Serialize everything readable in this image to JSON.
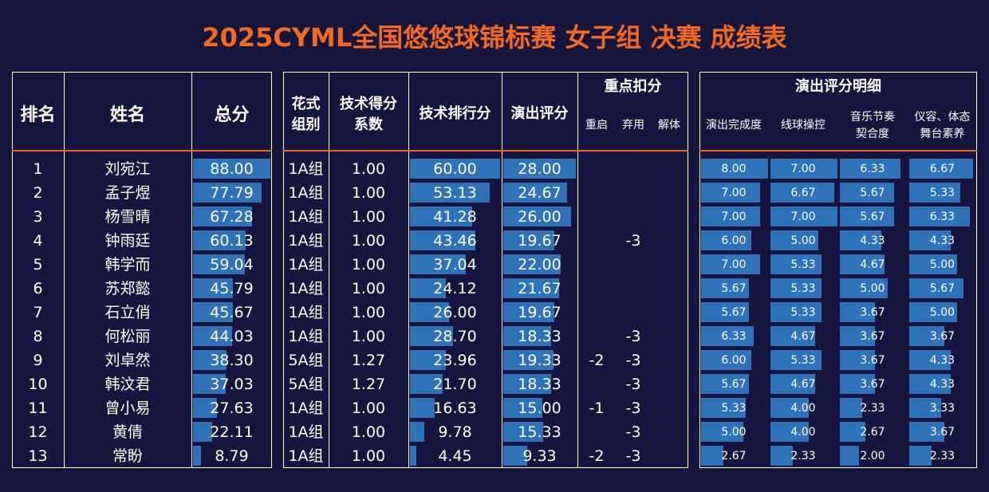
{
  "title": "2025CYML全国悠悠球锦标赛 女子组 决赛 成绩表",
  "headers": {
    "rank": "排名",
    "name": "姓名",
    "total": "总分",
    "group_l1": "花式",
    "group_l2": "组别",
    "coef_l1": "技术得分",
    "coef_l2": "系数",
    "tech": "技术排行分",
    "perf": "演出评分",
    "deduct": "重点扣分",
    "restart": "重启",
    "abandon": "弃用",
    "untie": "解体",
    "detail": "演出评分明细",
    "completion": "演出完成度",
    "control": "线球操控",
    "music_l1": "音乐节奏",
    "music_l2": "契合度",
    "posture_l1": "仪容、体态",
    "posture_l2": "舞台素养"
  },
  "chart_data": {
    "type": "table",
    "title": "2025CYML全国悠悠球锦标赛 女子组 决赛 成绩表",
    "colors": {
      "bar": "#2e73b8",
      "accent": "#f26a1d",
      "background": "#15153d"
    },
    "rows": [
      {
        "rank": "1",
        "name": "刘宛江",
        "total": "88.00",
        "group": "1A组",
        "coef": "1.00",
        "tech": "60.00",
        "perf": "28.00",
        "restart": "",
        "abandon": "",
        "untie": "",
        "completion": "8.00",
        "control": "7.00",
        "music": "6.33",
        "posture": "6.67"
      },
      {
        "rank": "2",
        "name": "孟子煜",
        "total": "77.79",
        "group": "1A组",
        "coef": "1.00",
        "tech": "53.13",
        "perf": "24.67",
        "restart": "",
        "abandon": "",
        "untie": "",
        "completion": "7.00",
        "control": "6.67",
        "music": "5.67",
        "posture": "5.33"
      },
      {
        "rank": "3",
        "name": "杨雪晴",
        "total": "67.28",
        "group": "1A组",
        "coef": "1.00",
        "tech": "41.28",
        "perf": "26.00",
        "restart": "",
        "abandon": "",
        "untie": "",
        "completion": "7.00",
        "control": "7.00",
        "music": "5.67",
        "posture": "6.33"
      },
      {
        "rank": "4",
        "name": "钟雨廷",
        "total": "60.13",
        "group": "1A组",
        "coef": "1.00",
        "tech": "43.46",
        "perf": "19.67",
        "restart": "",
        "abandon": "-3",
        "untie": "",
        "completion": "6.00",
        "control": "5.00",
        "music": "4.33",
        "posture": "4.33"
      },
      {
        "rank": "5",
        "name": "韩学而",
        "total": "59.04",
        "group": "1A组",
        "coef": "1.00",
        "tech": "37.04",
        "perf": "22.00",
        "restart": "",
        "abandon": "",
        "untie": "",
        "completion": "7.00",
        "control": "5.33",
        "music": "4.67",
        "posture": "5.00"
      },
      {
        "rank": "6",
        "name": "苏郑懿",
        "total": "45.79",
        "group": "1A组",
        "coef": "1.00",
        "tech": "24.12",
        "perf": "21.67",
        "restart": "",
        "abandon": "",
        "untie": "",
        "completion": "5.67",
        "control": "5.33",
        "music": "5.00",
        "posture": "5.67"
      },
      {
        "rank": "7",
        "name": "石立俏",
        "total": "45.67",
        "group": "1A组",
        "coef": "1.00",
        "tech": "26.00",
        "perf": "19.67",
        "restart": "",
        "abandon": "",
        "untie": "",
        "completion": "5.67",
        "control": "5.33",
        "music": "3.67",
        "posture": "5.00"
      },
      {
        "rank": "8",
        "name": "何松丽",
        "total": "44.03",
        "group": "1A组",
        "coef": "1.00",
        "tech": "28.70",
        "perf": "18.33",
        "restart": "",
        "abandon": "-3",
        "untie": "",
        "completion": "6.33",
        "control": "4.67",
        "music": "3.67",
        "posture": "3.67"
      },
      {
        "rank": "9",
        "name": "刘卓然",
        "total": "38.30",
        "group": "5A组",
        "coef": "1.27",
        "tech": "23.96",
        "perf": "19.33",
        "restart": "-2",
        "abandon": "-3",
        "untie": "",
        "completion": "6.00",
        "control": "5.33",
        "music": "3.67",
        "posture": "4.33"
      },
      {
        "rank": "10",
        "name": "韩汶君",
        "total": "37.03",
        "group": "5A组",
        "coef": "1.27",
        "tech": "21.70",
        "perf": "18.33",
        "restart": "",
        "abandon": "-3",
        "untie": "",
        "completion": "5.67",
        "control": "4.67",
        "music": "3.67",
        "posture": "4.33"
      },
      {
        "rank": "11",
        "name": "曾小易",
        "total": "27.63",
        "group": "1A组",
        "coef": "1.00",
        "tech": "16.63",
        "perf": "15.00",
        "restart": "-1",
        "abandon": "-3",
        "untie": "",
        "completion": "5.33",
        "control": "4.00",
        "music": "2.33",
        "posture": "3.33"
      },
      {
        "rank": "12",
        "name": "黄倩",
        "total": "22.11",
        "group": "1A组",
        "coef": "1.00",
        "tech": "9.78",
        "perf": "15.33",
        "restart": "",
        "abandon": "-3",
        "untie": "",
        "completion": "5.00",
        "control": "4.00",
        "music": "2.67",
        "posture": "3.67"
      },
      {
        "rank": "13",
        "name": "常盼",
        "total": "8.79",
        "group": "1A组",
        "coef": "1.00",
        "tech": "4.45",
        "perf": "9.33",
        "restart": "-2",
        "abandon": "-3",
        "untie": "",
        "completion": "2.67",
        "control": "2.33",
        "music": "2.00",
        "posture": "2.33"
      }
    ]
  }
}
